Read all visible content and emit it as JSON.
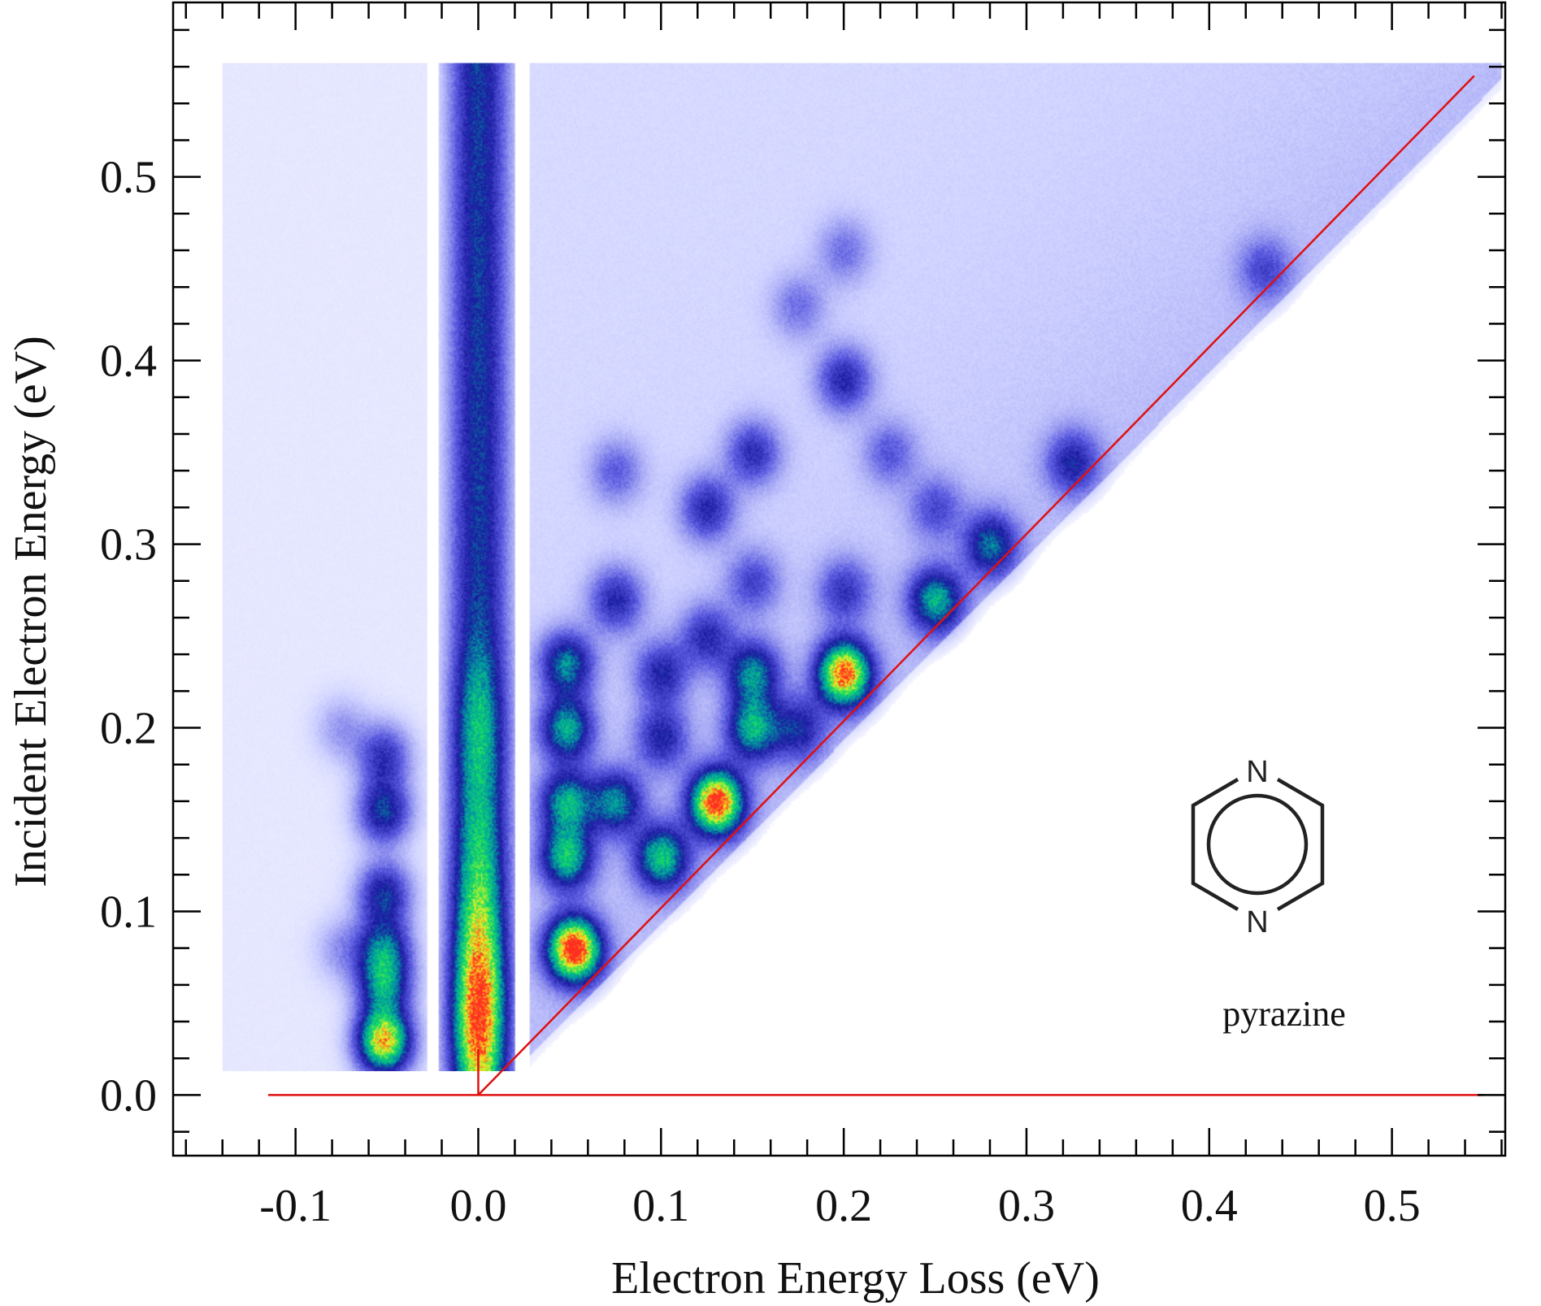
{
  "chart_data": {
    "type": "heatmap",
    "xlabel": "Electron Energy Loss (eV)",
    "ylabel": "Incident Electron Energy (eV)",
    "xlim": [
      -0.167,
      0.562
    ],
    "ylim": [
      -0.033,
      0.595
    ],
    "x_ticks": [
      -0.1,
      0.0,
      0.1,
      0.2,
      0.3,
      0.4,
      0.5
    ],
    "x_tick_labels": [
      "-0.1",
      "0.0",
      "0.1",
      "0.2",
      "0.3",
      "0.4",
      "0.5"
    ],
    "y_ticks": [
      0.0,
      0.1,
      0.2,
      0.3,
      0.4,
      0.5
    ],
    "y_tick_labels": [
      "0.0",
      "0.1",
      "0.2",
      "0.3",
      "0.4",
      "0.5"
    ],
    "x_minor_step": 0.02,
    "y_minor_step": 0.02,
    "data_region": {
      "x_min": -0.14,
      "x_max": 0.56,
      "y_min": 0.013,
      "y_max": 0.562
    },
    "colormap": [
      "#ffffff",
      "#cdd0ff",
      "#5a5ae0",
      "#1a1aa0",
      "#00a0a0",
      "#18e060",
      "#f8f020",
      "#ff3020"
    ],
    "elastic_peak": {
      "x": 0.0,
      "y_start": 0.013,
      "y_end": 0.56,
      "intensity": 0.72
    },
    "elastic_hot": [
      {
        "y": 0.035,
        "intensity": 1.0
      },
      {
        "y": 0.08,
        "intensity": 0.55
      },
      {
        "y": 0.2,
        "intensity": 0.4
      },
      {
        "y": 0.13,
        "intensity": 0.35
      }
    ],
    "peaks": [
      {
        "x": 0.052,
        "y": 0.08,
        "intensity": 1.0
      },
      {
        "x": 0.13,
        "y": 0.16,
        "intensity": 0.95
      },
      {
        "x": 0.2,
        "y": 0.23,
        "intensity": 0.9
      },
      {
        "x": -0.052,
        "y": 0.03,
        "intensity": 0.85
      },
      {
        "x": 0.048,
        "y": 0.13,
        "intensity": 0.55
      },
      {
        "x": 0.048,
        "y": 0.16,
        "intensity": 0.5
      },
      {
        "x": 0.048,
        "y": 0.2,
        "intensity": 0.5
      },
      {
        "x": 0.048,
        "y": 0.235,
        "intensity": 0.45
      },
      {
        "x": 0.075,
        "y": 0.16,
        "intensity": 0.45
      },
      {
        "x": 0.1,
        "y": 0.13,
        "intensity": 0.55
      },
      {
        "x": 0.15,
        "y": 0.2,
        "intensity": 0.5
      },
      {
        "x": 0.15,
        "y": 0.23,
        "intensity": 0.45
      },
      {
        "x": 0.25,
        "y": 0.27,
        "intensity": 0.5
      },
      {
        "x": 0.28,
        "y": 0.3,
        "intensity": 0.4
      },
      {
        "x": -0.052,
        "y": 0.06,
        "intensity": 0.45
      },
      {
        "x": -0.052,
        "y": 0.08,
        "intensity": 0.42
      },
      {
        "x": -0.052,
        "y": 0.11,
        "intensity": 0.38
      },
      {
        "x": -0.052,
        "y": 0.155,
        "intensity": 0.4
      },
      {
        "x": -0.052,
        "y": 0.185,
        "intensity": 0.3
      },
      {
        "x": 0.075,
        "y": 0.27,
        "intensity": 0.3
      },
      {
        "x": 0.125,
        "y": 0.32,
        "intensity": 0.3
      },
      {
        "x": 0.15,
        "y": 0.35,
        "intensity": 0.28
      },
      {
        "x": 0.2,
        "y": 0.39,
        "intensity": 0.3
      },
      {
        "x": 0.325,
        "y": 0.345,
        "intensity": 0.3
      },
      {
        "x": 0.1,
        "y": 0.23,
        "intensity": 0.3
      },
      {
        "x": 0.125,
        "y": 0.25,
        "intensity": 0.28
      },
      {
        "x": 0.175,
        "y": 0.2,
        "intensity": 0.3
      },
      {
        "x": 0.2,
        "y": 0.275,
        "intensity": 0.25
      },
      {
        "x": 0.1,
        "y": 0.195,
        "intensity": 0.3
      },
      {
        "x": 0.225,
        "y": 0.35,
        "intensity": 0.18
      },
      {
        "x": 0.175,
        "y": 0.43,
        "intensity": 0.15
      },
      {
        "x": 0.2,
        "y": 0.46,
        "intensity": 0.15
      },
      {
        "x": 0.43,
        "y": 0.45,
        "intensity": 0.2
      },
      {
        "x": 0.15,
        "y": 0.28,
        "intensity": 0.22
      },
      {
        "x": 0.25,
        "y": 0.32,
        "intensity": 0.2
      },
      {
        "x": 0.075,
        "y": 0.34,
        "intensity": 0.18
      },
      {
        "x": -0.075,
        "y": 0.2,
        "intensity": 0.12
      },
      {
        "x": -0.075,
        "y": 0.08,
        "intensity": 0.12
      }
    ],
    "reference_lines": [
      {
        "from": [
          -0.115,
          0.0
        ],
        "to": [
          0.55,
          0.0
        ],
        "color": "#e01010"
      },
      {
        "from": [
          0.0,
          0.0
        ],
        "to": [
          0.545,
          0.555
        ],
        "color": "#e01010"
      },
      {
        "from": [
          0.0,
          0.0
        ],
        "to": [
          0.0,
          0.025
        ],
        "color": "#e01010"
      }
    ]
  },
  "annotation": {
    "molecule_name": "pyrazine",
    "atom_top": "N",
    "atom_bottom": "N"
  }
}
